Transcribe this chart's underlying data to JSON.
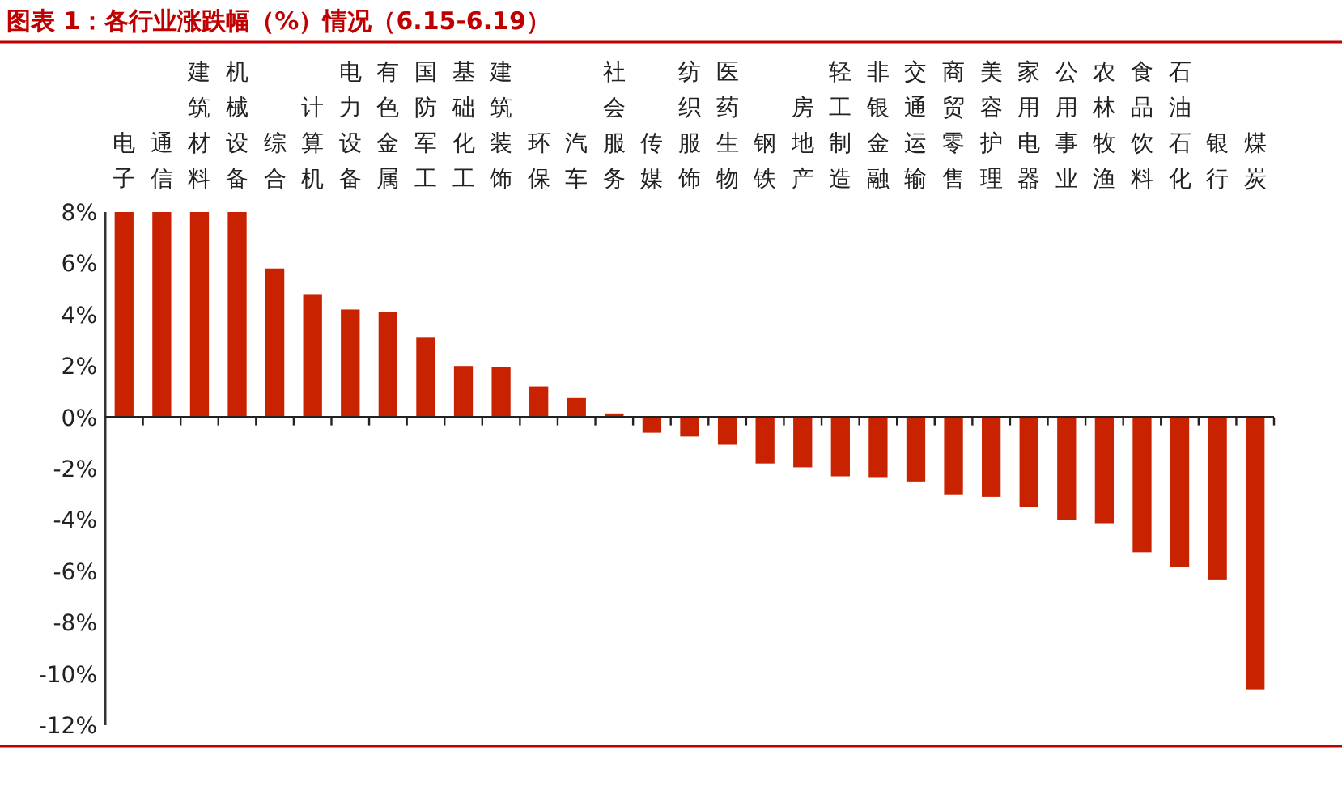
{
  "chart_data": {
    "type": "bar",
    "title": "图表 1：各行业涨跌幅（%）情况（6.15-6.19）",
    "categories": [
      "电子",
      "通信",
      "建筑材料",
      "机械设备",
      "综合",
      "计算机",
      "电力设备",
      "有色金属",
      "国防军工",
      "基础化工",
      "建筑装饰",
      "环保",
      "汽车",
      "社会服务",
      "传媒",
      "纺织服饰",
      "医药生物",
      "钢铁",
      "房地产",
      "轻工制造",
      "非银金融",
      "交通运输",
      "商贸零售",
      "美容护理",
      "家用电器",
      "公用事业",
      "农林牧渔",
      "食品饮料",
      "石油石化",
      "银行",
      "煤炭"
    ],
    "values": [
      8,
      8,
      8,
      8,
      5.8,
      4.8,
      4.2,
      4.1,
      3.1,
      2.0,
      1.95,
      1.2,
      0.75,
      0.15,
      -0.6,
      -0.75,
      -1.07,
      -1.8,
      -1.95,
      -2.3,
      -2.33,
      -2.5,
      -3.0,
      -3.1,
      -3.5,
      -4.0,
      -4.13,
      -5.26,
      -5.83,
      -6.35,
      -10.6
    ],
    "color": "#c82200",
    "ylim": [
      -12,
      8
    ],
    "yticks": [
      {
        "value": 8,
        "label": "8%"
      },
      {
        "value": 6,
        "label": "6%"
      },
      {
        "value": 4,
        "label": "4%"
      },
      {
        "value": 2,
        "label": "2%"
      },
      {
        "value": 0,
        "label": "0%"
      },
      {
        "value": -2,
        "label": "-2%"
      },
      {
        "value": -4,
        "label": "-4%"
      },
      {
        "value": -6,
        "label": "-6%"
      },
      {
        "value": -8,
        "label": "-8%"
      },
      {
        "value": -10,
        "label": "-10%"
      },
      {
        "value": -12,
        "label": "-12%"
      }
    ]
  }
}
